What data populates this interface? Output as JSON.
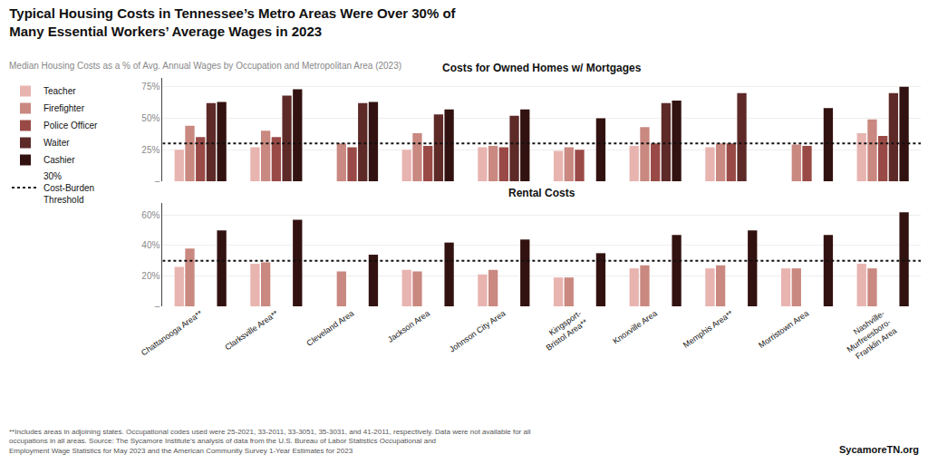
{
  "title": "Typical Housing Costs in Tennessee’s Metro Areas Were Over 30% of\nMany Essential Workers’ Average Wages in 2023",
  "subtitle": "Median Housing Costs as a % of Avg. Annual Wages by Occupation and Metropolitan Area (2023)",
  "annotations": [
    "**Includes areas in adjoining states. Occupational codes used were 25-2021, 33-2011, 33-3051, 35-3031, and 41-2011, respectively. Data were not available for all\noccupations in all areas. Source: The Sycamore Institute’s analysis of data from the U.S. Bureau of Labor Statistics Occupational and\nEmployment Wage Statistics for May 2023 and the American Community Survey 1-Year Estimates for 2023",
    "SycamoreTN.org"
  ],
  "chart_data": [
    {
      "type": "bar",
      "title": "Costs for Owned Homes w/ Mortgages",
      "categories": [
        "Chattanooga Area**",
        "Clarksville Area**",
        "Cleveland Area",
        "Jackson Area",
        "Johnson City Area",
        "Kingsport-\nBristol Area**",
        "Knoxville Area",
        "Memphis Area**",
        "Morristown Area",
        "Nashville-\nMurfreesboro-\nFranklin Area"
      ],
      "series": [
        {
          "name": "Teacher",
          "color": "#e8b4b0",
          "values": [
            25,
            27,
            null,
            25,
            27,
            24,
            28,
            27,
            null,
            38
          ]
        },
        {
          "name": "Firefighter",
          "color": "#c98880",
          "values": [
            44,
            40,
            30,
            38,
            28,
            27,
            43,
            30,
            29,
            49
          ]
        },
        {
          "name": "Police Officer",
          "color": "#9a4a46",
          "values": [
            35,
            35,
            27,
            28,
            27,
            25,
            30,
            30,
            28,
            36
          ]
        },
        {
          "name": "Waiter",
          "color": "#5e2a28",
          "values": [
            62,
            68,
            62,
            53,
            52,
            null,
            62,
            70,
            null,
            70
          ]
        },
        {
          "name": "Cashier",
          "color": "#321210",
          "values": [
            63,
            73,
            63,
            57,
            57,
            50,
            64,
            null,
            58,
            75
          ]
        }
      ],
      "threshold": {
        "name": "30%\nCost-Burden\nThreshold",
        "value": 30,
        "color": "#111111",
        "line_style": "dotted"
      },
      "ylim": [
        0,
        82
      ],
      "yticks": [
        {
          "value": 0,
          "label": "–"
        },
        {
          "value": 25,
          "label": "25%"
        },
        {
          "value": 50,
          "label": "50%"
        },
        {
          "value": 75,
          "label": "75%"
        }
      ],
      "grid": true,
      "tick_labels": "y"
    },
    {
      "type": "bar",
      "title": "Rental Costs",
      "categories": [
        "Chattanooga Area**",
        "Clarksville Area**",
        "Cleveland Area",
        "Jackson Area",
        "Johnson City Area",
        "Kingsport-\nBristol Area**",
        "Knoxville Area",
        "Memphis Area**",
        "Morristown Area",
        "Nashville-\nMurfreesboro-\nFranklin Area"
      ],
      "series": [
        {
          "name": "Teacher",
          "color": "#e8b4b0",
          "values": [
            26,
            28,
            null,
            24,
            21,
            19,
            25,
            25,
            25,
            28
          ]
        },
        {
          "name": "Firefighter",
          "color": "#c98880",
          "values": [
            38,
            29,
            23,
            23,
            24,
            19,
            27,
            27,
            25,
            25
          ]
        },
        {
          "name": "Police Officer",
          "color": "#9a4a46",
          "values": [
            null,
            null,
            null,
            null,
            null,
            null,
            null,
            null,
            null,
            null
          ]
        },
        {
          "name": "Waiter",
          "color": "#5e2a28",
          "values": [
            null,
            null,
            null,
            null,
            null,
            null,
            null,
            null,
            null,
            null
          ]
        },
        {
          "name": "Cashier",
          "color": "#321210",
          "values": [
            50,
            57,
            34,
            42,
            44,
            35,
            47,
            50,
            47,
            62
          ]
        }
      ],
      "threshold": {
        "name": "30%\nCost-Burden\nThreshold",
        "value": 30,
        "color": "#111111",
        "line_style": "dotted"
      },
      "ylim": [
        0,
        68
      ],
      "yticks": [
        {
          "value": 0,
          "label": "–"
        },
        {
          "value": 20,
          "label": "20%"
        },
        {
          "value": 40,
          "label": "40%"
        },
        {
          "value": 60,
          "label": "60%"
        }
      ],
      "grid": true
    }
  ]
}
